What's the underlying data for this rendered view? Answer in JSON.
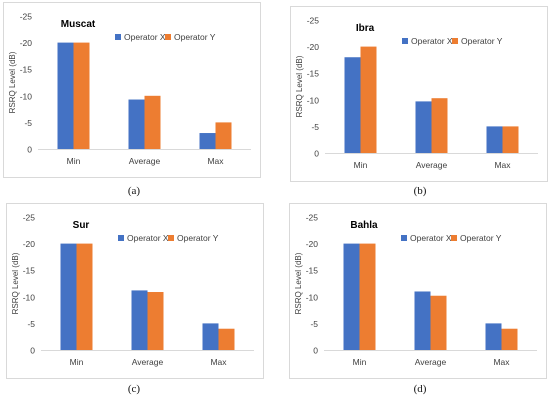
{
  "chart_data": [
    {
      "type": "bar",
      "title": "Muscat",
      "caption": "(a)",
      "ylabel": "RSRQ Level (dB)",
      "yticks": [
        "-25",
        "-20",
        "-15",
        "-10",
        "-5",
        "0"
      ],
      "ylim": [
        0,
        -25
      ],
      "categories": [
        "Min",
        "Average",
        "Max"
      ],
      "series": [
        {
          "name": "Operator X",
          "values": [
            -20,
            -9.3,
            -3
          ]
        },
        {
          "name": "Operator Y",
          "values": [
            -20,
            -10,
            -5
          ]
        }
      ],
      "legend": "top-right"
    },
    {
      "type": "bar",
      "title": "Ibra",
      "caption": "(b)",
      "ylabel": "RSRQ Level (dB)",
      "yticks": [
        "-25",
        "-20",
        "-15",
        "-10",
        "-5",
        "0"
      ],
      "ylim": [
        0,
        -25
      ],
      "categories": [
        "Min",
        "Average",
        "Max"
      ],
      "series": [
        {
          "name": "Operator X",
          "values": [
            -18,
            -9.7,
            -5
          ]
        },
        {
          "name": "Operator Y",
          "values": [
            -20,
            -10.3,
            -5
          ]
        }
      ],
      "legend": "top-right"
    },
    {
      "type": "bar",
      "title": "Sur",
      "caption": "(c)",
      "ylabel": "RSRQ Level (dB)",
      "yticks": [
        "-25",
        "-20",
        "-15",
        "-10",
        "-5",
        "0"
      ],
      "ylim": [
        0,
        -25
      ],
      "categories": [
        "Min",
        "Average",
        "Max"
      ],
      "series": [
        {
          "name": "Operator X",
          "values": [
            -20,
            -11.2,
            -5
          ]
        },
        {
          "name": "Operator Y",
          "values": [
            -20,
            -10.9,
            -4
          ]
        }
      ],
      "legend": "top-right"
    },
    {
      "type": "bar",
      "title": "Bahla",
      "caption": "(d)",
      "ylabel": "RSRQ Level (dB)",
      "yticks": [
        "-25",
        "-20",
        "-15",
        "-10",
        "-5",
        "0"
      ],
      "ylim": [
        0,
        -25
      ],
      "categories": [
        "Min",
        "Average",
        "Max"
      ],
      "series": [
        {
          "name": "Operator X",
          "values": [
            -20,
            -11,
            -5
          ]
        },
        {
          "name": "Operator Y",
          "values": [
            -20,
            -10.2,
            -4
          ]
        }
      ],
      "legend": "top-right"
    }
  ],
  "colors": {
    "operator_x": "#4472c4",
    "operator_y": "#ed7d31",
    "axis": "#d9d9d9",
    "text": "#404040"
  }
}
